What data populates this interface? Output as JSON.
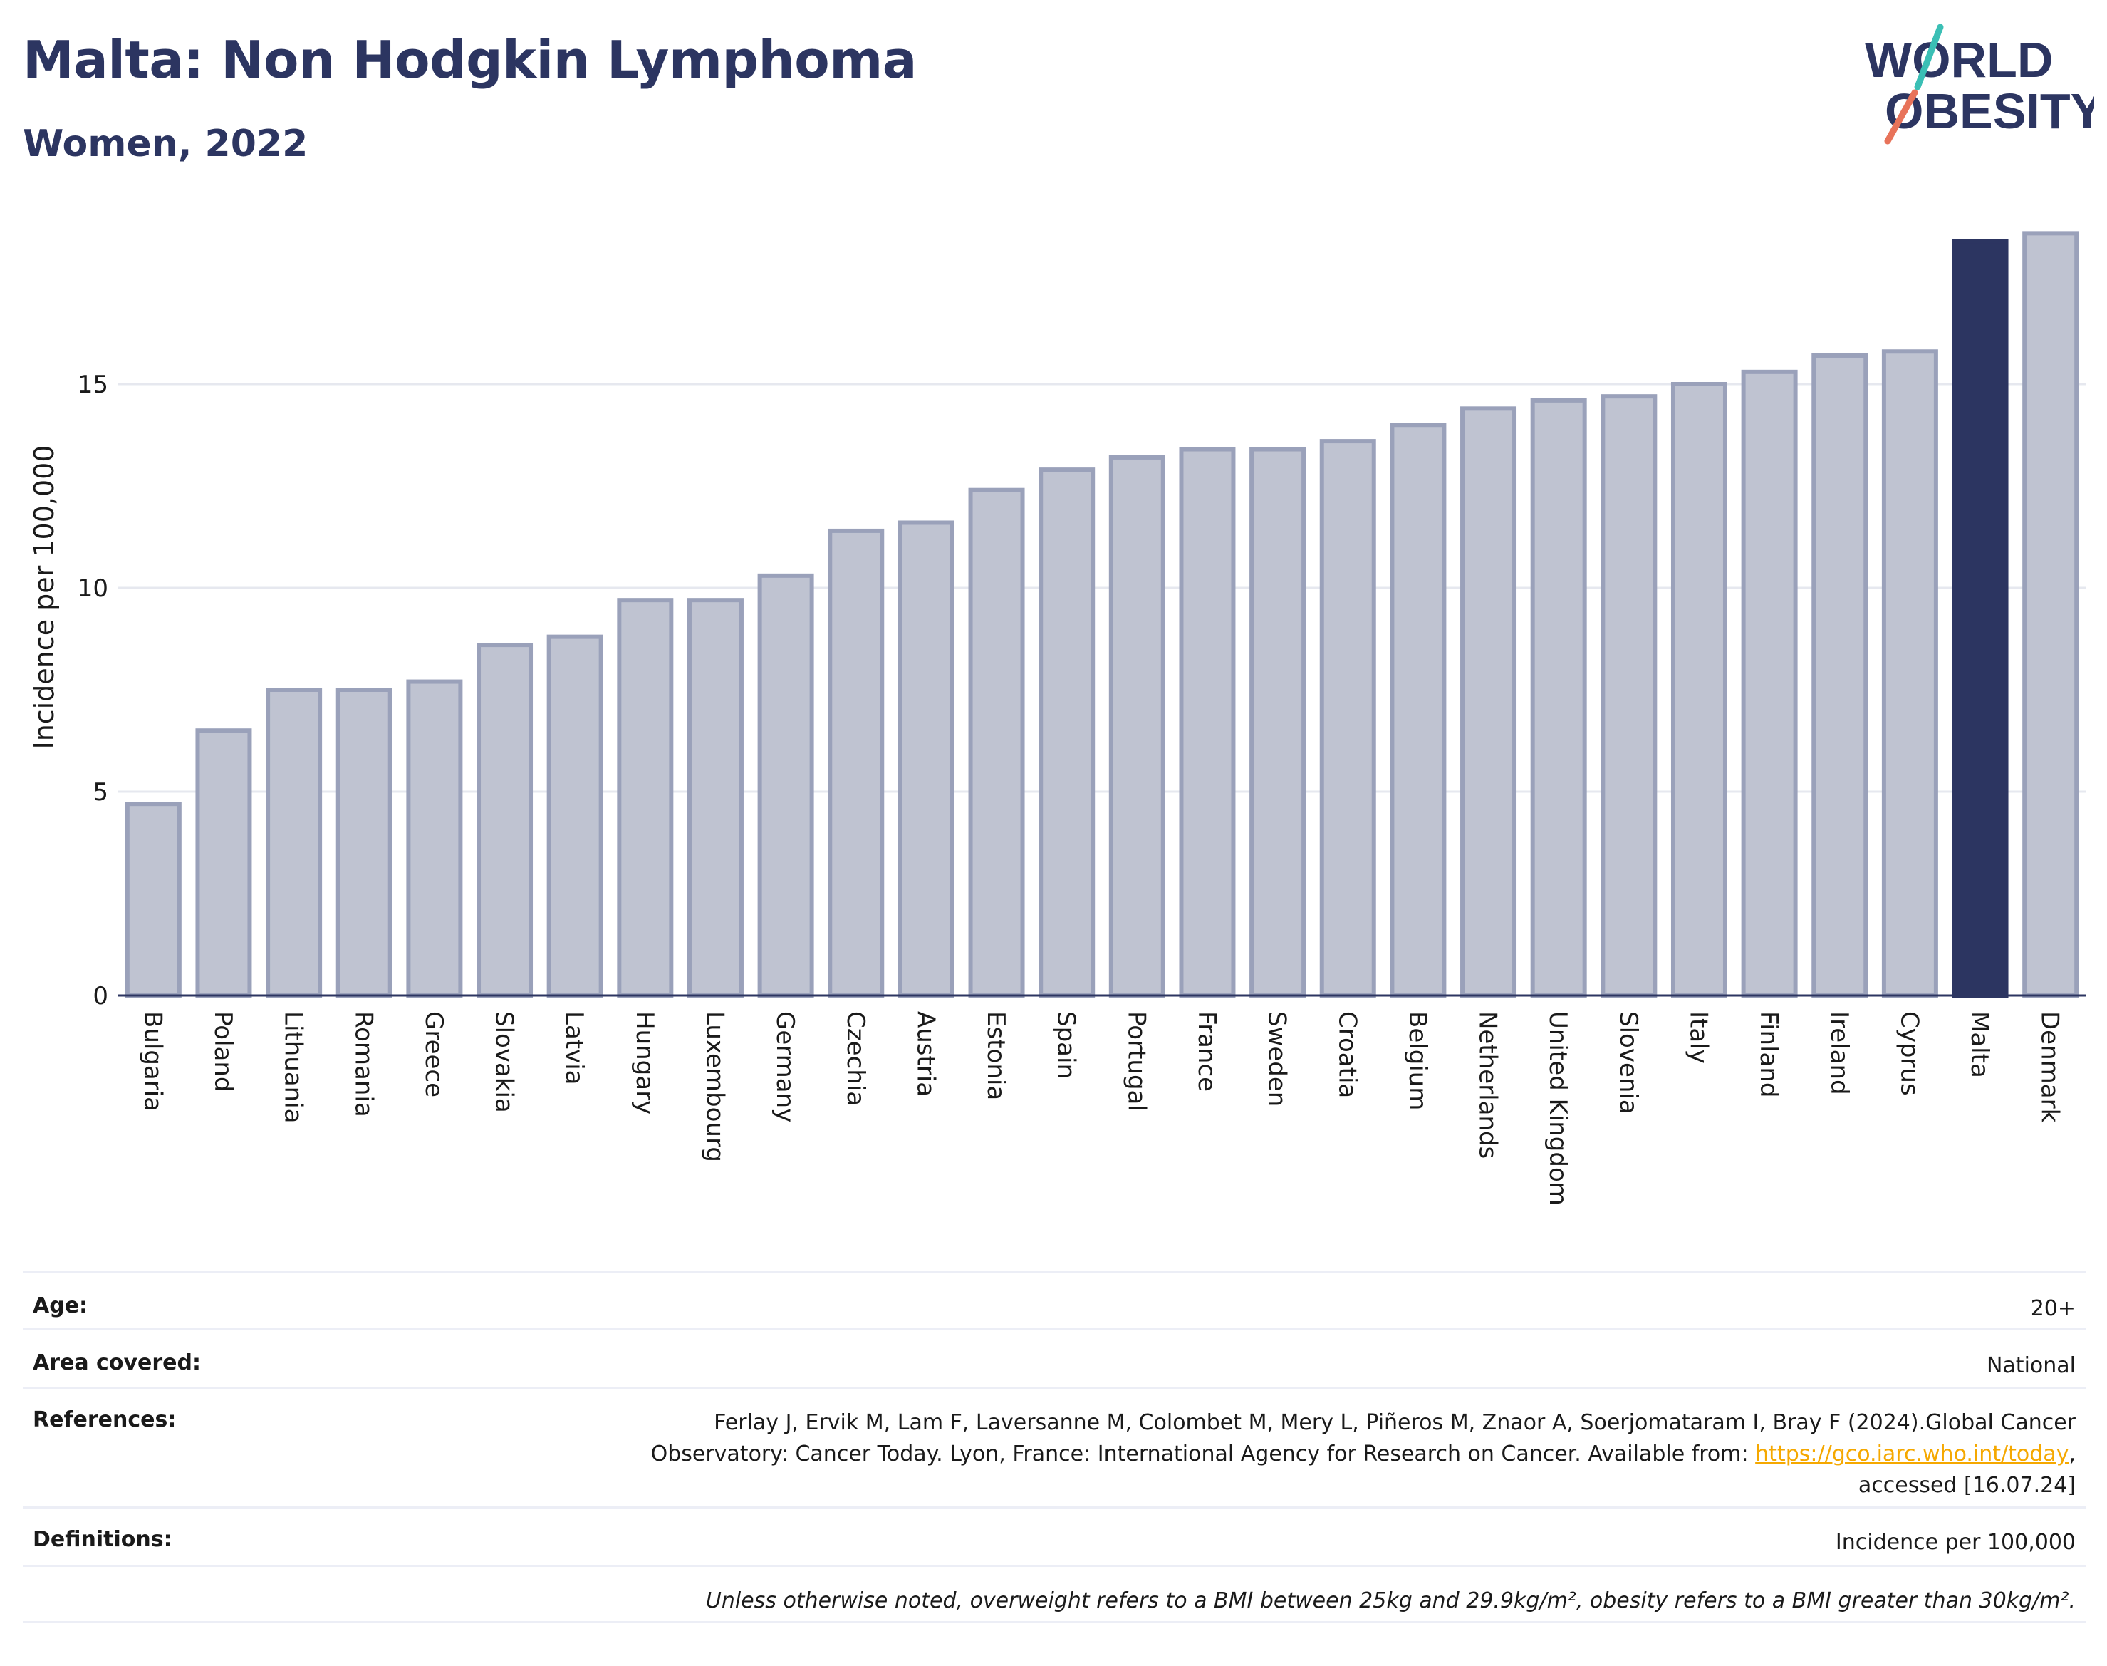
{
  "header": {
    "title": "Malta: Non Hodgkin Lymphoma",
    "subtitle": "Women, 2022"
  },
  "logo": {
    "line1": "WORLD",
    "line2": "OBESITY"
  },
  "colors": {
    "bar": "#bfc3d1",
    "bar_border": "#9aa1ba",
    "highlight": "#2c3561",
    "grid": "#e6e8ef",
    "axis": "#2c3561"
  },
  "chart_data": {
    "type": "bar",
    "ylabel": "Incidence per 100,000",
    "ylim": [
      0,
      19
    ],
    "yticks": [
      0,
      5,
      10,
      15
    ],
    "grid": true,
    "highlight": "Malta",
    "categories": [
      "Bulgaria",
      "Poland",
      "Lithuania",
      "Romania",
      "Greece",
      "Slovakia",
      "Latvia",
      "Hungary",
      "Luxembourg",
      "Germany",
      "Czechia",
      "Austria",
      "Estonia",
      "Spain",
      "Portugal",
      "France",
      "Sweden",
      "Croatia",
      "Belgium",
      "Netherlands",
      "United Kingdom",
      "Slovenia",
      "Italy",
      "Finland",
      "Ireland",
      "Cyprus",
      "Malta",
      "Denmark"
    ],
    "values": [
      4.7,
      6.5,
      7.5,
      7.5,
      7.7,
      8.6,
      8.8,
      9.7,
      9.7,
      10.3,
      11.4,
      11.6,
      12.4,
      12.9,
      13.2,
      13.4,
      13.4,
      13.6,
      14.0,
      14.4,
      14.6,
      14.7,
      15.0,
      15.3,
      15.7,
      15.8,
      18.5,
      18.7
    ]
  },
  "meta": {
    "age_label": "Age:",
    "age_value": "20+",
    "area_label": "Area covered:",
    "area_value": "National",
    "references_label": "References:",
    "references_line1": "Ferlay J, Ervik M, Lam F, Laversanne M, Colombet M, Mery L, Piñeros M, Znaor A, Soerjomataram I, Bray F (2024).Global Cancer",
    "references_line2_pre": "Observatory: Cancer Today. Lyon, France: International Agency for Research on Cancer. Available from: ",
    "references_link": "https://gco.iarc.who.int/today",
    "references_line2_post": ",",
    "references_line3": "accessed [16.07.24]",
    "definitions_label": "Definitions:",
    "definitions_value": "Incidence per 100,000",
    "note": "Unless otherwise noted, overweight refers to a BMI between 25kg and 29.9kg/m², obesity refers to a BMI greater than 30kg/m²."
  }
}
